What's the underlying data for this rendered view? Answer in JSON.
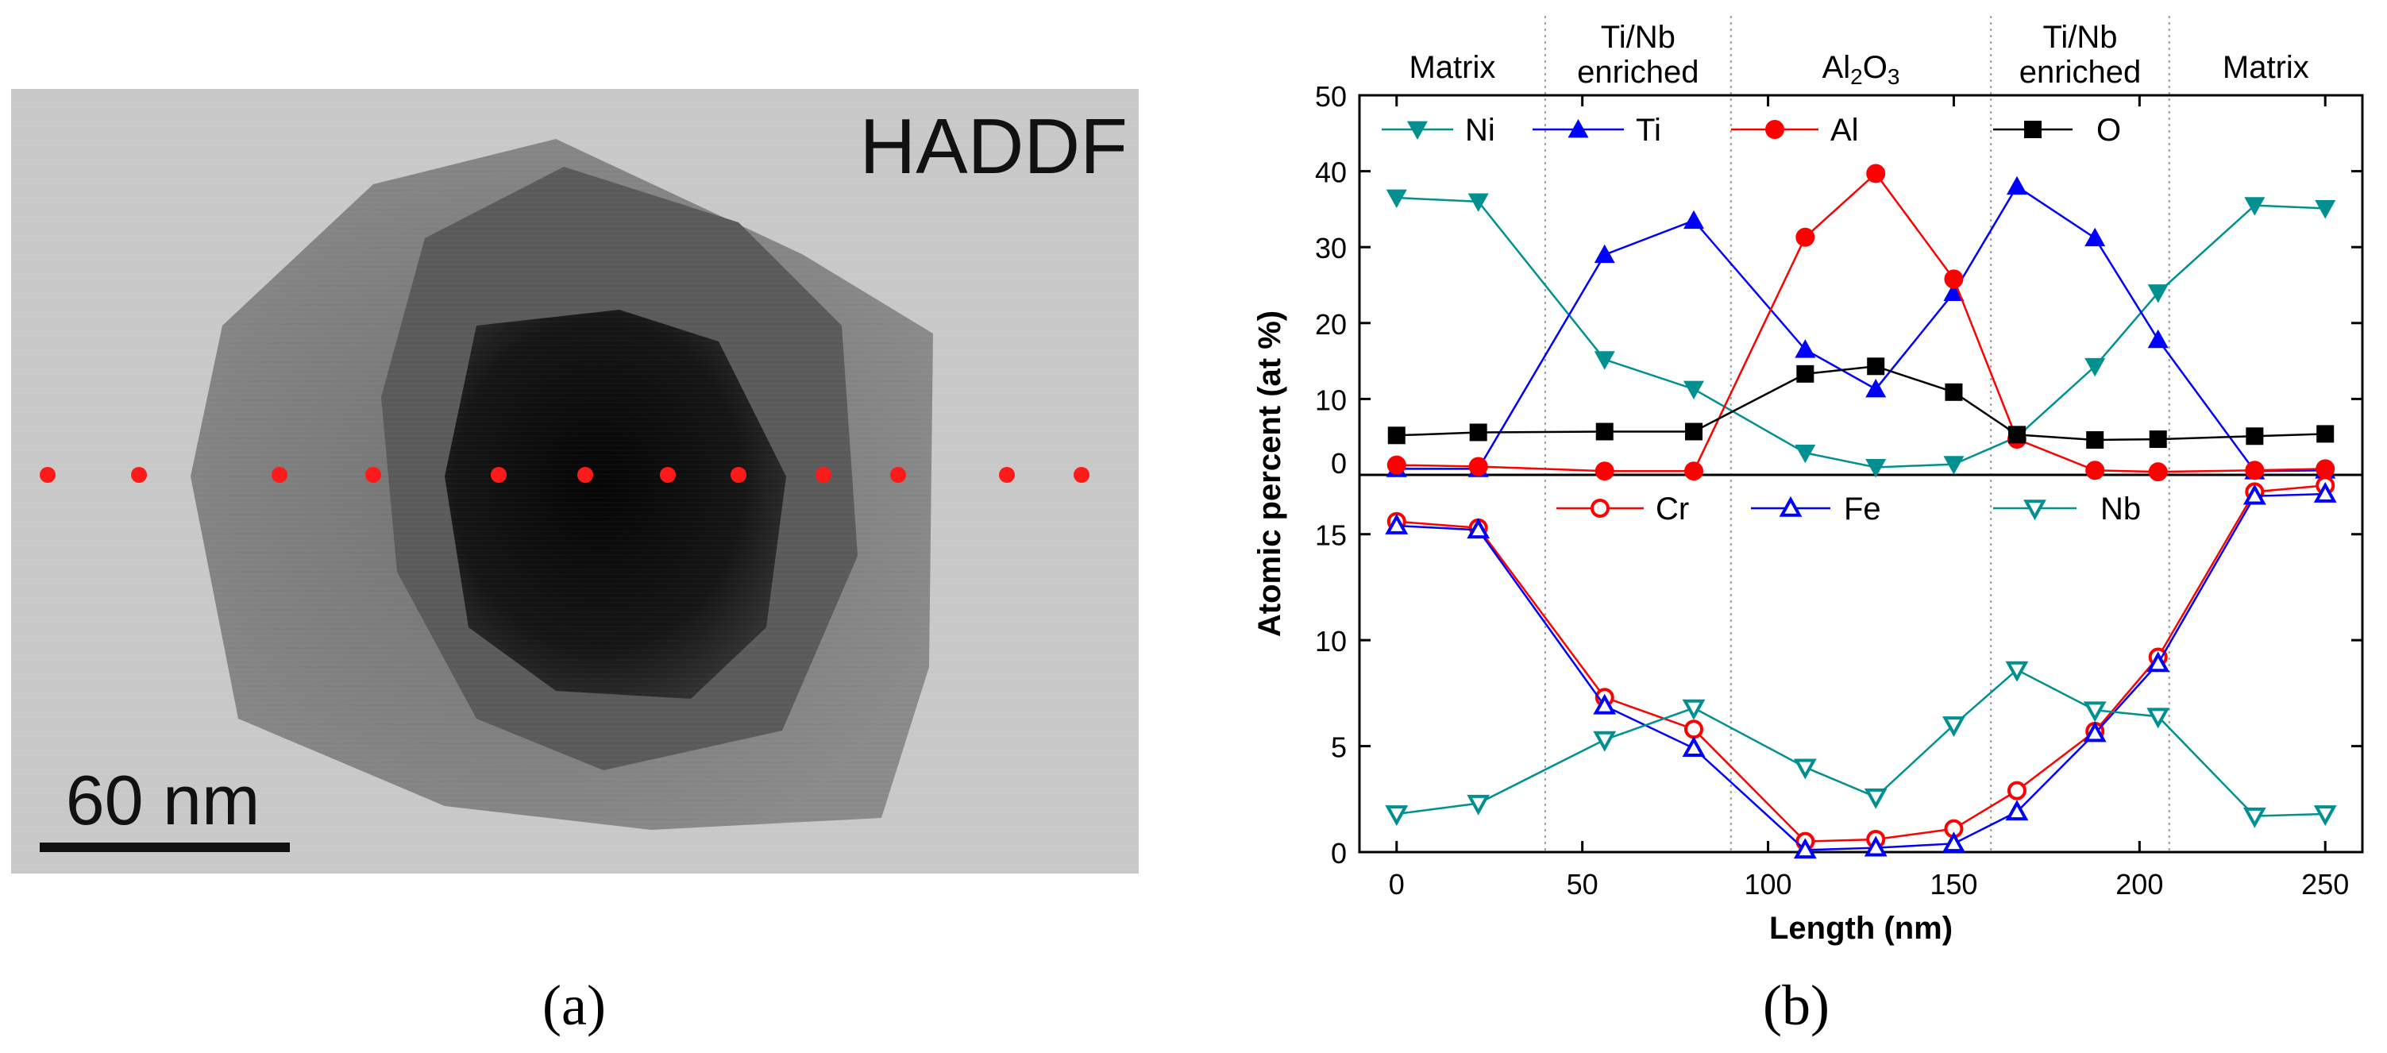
{
  "panel_a": {
    "label": "(a)",
    "image_label": "HADDF",
    "scale_bar": "60 nm",
    "marker_color": "#ff1a1a"
  },
  "panel_b": {
    "label": "(b)",
    "regions": [
      "Matrix",
      "Ti/Nb\nenriched",
      "Al2O3",
      "Ti/Nb\nenriched",
      "Matrix"
    ],
    "region_bounds_nm": [
      -10,
      40,
      90,
      160,
      208,
      260
    ]
  },
  "chart_data": {
    "type": "line",
    "xlabel": "Length (nm)",
    "ylabel": "Atomic percent (at %)",
    "xlim": [
      -10,
      260
    ],
    "xticks": [
      0,
      50,
      100,
      150,
      200,
      250
    ],
    "x": [
      0,
      22,
      56,
      80,
      110,
      129,
      150,
      167,
      188,
      205,
      231,
      250
    ],
    "panels": [
      {
        "name": "top",
        "ylim": [
          0,
          50
        ],
        "yticks": [
          0,
          10,
          20,
          30,
          40,
          50
        ],
        "series": [
          {
            "name": "Ni",
            "color": "#009090",
            "marker": "triangle-down",
            "values": [
              36.5,
              36,
              15.2,
              11.3,
              2.9,
              1.0,
              1.4,
              5.0,
              14.3,
              24.0,
              35.5,
              35.1
            ]
          },
          {
            "name": "Ti",
            "color": "#0000ff",
            "marker": "triangle-up",
            "values": [
              0.8,
              0.8,
              29.0,
              33.5,
              16.5,
              11.3,
              24.0,
              38.0,
              31.2,
              17.8,
              0.5,
              0.6
            ]
          },
          {
            "name": "Al",
            "color": "#ff0000",
            "marker": "circle",
            "values": [
              1.3,
              1.1,
              0.5,
              0.5,
              31.3,
              39.7,
              25.8,
              4.7,
              0.6,
              0.4,
              0.6,
              0.8
            ]
          },
          {
            "name": "O",
            "color": "#000000",
            "marker": "square",
            "values": [
              5.2,
              5.6,
              5.7,
              5.7,
              13.3,
              14.3,
              10.9,
              5.3,
              4.6,
              4.7,
              5.1,
              5.4
            ]
          }
        ]
      },
      {
        "name": "bottom",
        "ylim": [
          0,
          17.8
        ],
        "yticks": [
          0,
          5,
          10,
          15
        ],
        "series": [
          {
            "name": "Cr",
            "color": "#ff0000",
            "marker": "circle-open",
            "values": [
              15.6,
              15.3,
              7.3,
              5.8,
              0.5,
              0.6,
              1.1,
              2.9,
              5.7,
              9.2,
              17.0,
              17.3
            ]
          },
          {
            "name": "Fe",
            "color": "#0000ff",
            "marker": "triangle-up-open",
            "values": [
              15.4,
              15.2,
              6.9,
              4.9,
              0.1,
              0.2,
              0.4,
              1.9,
              5.6,
              8.9,
              16.8,
              16.9
            ]
          },
          {
            "name": "Nb",
            "color": "#009090",
            "marker": "triangle-down-open",
            "values": [
              1.8,
              2.3,
              5.3,
              6.8,
              4.0,
              2.6,
              6.0,
              8.6,
              6.7,
              6.4,
              1.7,
              1.8
            ]
          }
        ]
      }
    ]
  }
}
